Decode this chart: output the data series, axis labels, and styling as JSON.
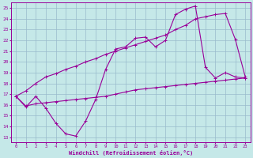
{
  "xlabel": "Windchill (Refroidissement éolien,°C)",
  "xlim": [
    -0.5,
    23.5
  ],
  "ylim": [
    12.5,
    25.5
  ],
  "xticks": [
    0,
    1,
    2,
    3,
    4,
    5,
    6,
    7,
    8,
    9,
    10,
    11,
    12,
    13,
    14,
    15,
    16,
    17,
    18,
    19,
    20,
    21,
    22,
    23
  ],
  "yticks": [
    13,
    14,
    15,
    16,
    17,
    18,
    19,
    20,
    21,
    22,
    23,
    24,
    25
  ],
  "background_color": "#c5e8e8",
  "line_color": "#990099",
  "grid_color": "#99bbcc",
  "line1_x": [
    0,
    1,
    2,
    3,
    4,
    5,
    6,
    7,
    8,
    9,
    10,
    11,
    12,
    13,
    14,
    15,
    16,
    17,
    18,
    19,
    20,
    21,
    22,
    23
  ],
  "line1_y": [
    16.8,
    15.8,
    16.8,
    15.7,
    14.3,
    13.3,
    13.1,
    14.5,
    16.5,
    19.3,
    21.2,
    21.4,
    22.2,
    22.3,
    21.4,
    22.0,
    24.4,
    24.9,
    25.2,
    19.5,
    18.5,
    19.0,
    18.6,
    18.5
  ],
  "line2_x": [
    0,
    1,
    2,
    3,
    4,
    5,
    6,
    7,
    8,
    9,
    10,
    11,
    12,
    13,
    14,
    15,
    16,
    17,
    18,
    19,
    20,
    21,
    22,
    23
  ],
  "line2_y": [
    16.8,
    17.3,
    18.0,
    18.6,
    18.9,
    19.3,
    19.6,
    20.0,
    20.3,
    20.7,
    21.0,
    21.3,
    21.6,
    21.9,
    22.2,
    22.5,
    23.0,
    23.4,
    24.0,
    24.2,
    24.4,
    24.5,
    22.1,
    18.6
  ],
  "line3_x": [
    0,
    1,
    2,
    3,
    4,
    5,
    6,
    7,
    8,
    9,
    10,
    11,
    12,
    13,
    14,
    15,
    16,
    17,
    18,
    19,
    20,
    21,
    22,
    23
  ],
  "line3_y": [
    16.8,
    15.9,
    16.1,
    16.2,
    16.3,
    16.4,
    16.5,
    16.6,
    16.7,
    16.8,
    17.0,
    17.2,
    17.4,
    17.5,
    17.6,
    17.7,
    17.8,
    17.9,
    18.0,
    18.1,
    18.2,
    18.3,
    18.4,
    18.5
  ]
}
